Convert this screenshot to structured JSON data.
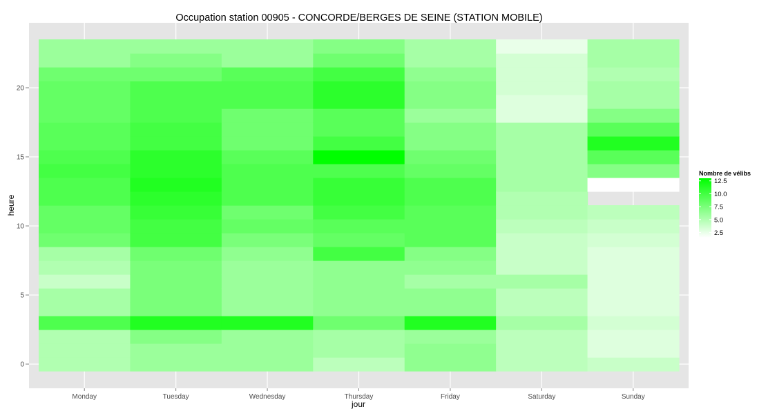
{
  "chart_data": {
    "type": "heatmap",
    "title": "Occupation station 00905 - CONCORDE/BERGES DE SEINE (STATION MOBILE)",
    "xlabel": "jour",
    "ylabel": "heure",
    "categories": [
      "Monday",
      "Tuesday",
      "Wednesday",
      "Thursday",
      "Friday",
      "Saturday",
      "Sunday"
    ],
    "y": [
      0,
      1,
      2,
      3,
      4,
      5,
      6,
      7,
      8,
      9,
      10,
      11,
      12,
      13,
      14,
      15,
      16,
      17,
      18,
      19,
      20,
      21,
      22,
      23
    ],
    "ylim": [
      -0.5,
      23.5
    ],
    "yticks": [
      0,
      5,
      10,
      15,
      20
    ],
    "legend": {
      "title": "Nombre de vélibs",
      "labels": [
        "12.5",
        "10.0",
        "7.5",
        "5.0",
        "2.5"
      ],
      "ticks": [
        12.5,
        10.0,
        7.5,
        5.0,
        2.5
      ],
      "range": [
        1.5,
        13.0
      ],
      "low_color": "#ffffff",
      "high_color": "#00ff00",
      "placement": "right"
    },
    "grid": true,
    "values": [
      [
        5.0,
        5.0,
        5.0,
        9.5,
        5.5,
        5.5,
        4.0,
        5.0,
        5.5,
        8.0,
        8.5,
        8.5,
        9.5,
        9.5,
        10.0,
        9.5,
        9.0,
        9.0,
        8.5,
        8.5,
        8.5,
        8.0,
        6.0,
        6.0
      ],
      [
        6.0,
        6.0,
        7.0,
        11.5,
        7.5,
        7.5,
        7.5,
        7.5,
        8.0,
        10.0,
        10.0,
        10.5,
        11.0,
        11.5,
        11.0,
        11.0,
        10.0,
        10.0,
        9.5,
        9.5,
        9.5,
        8.0,
        7.0,
        6.0
      ],
      [
        6.0,
        6.0,
        6.0,
        11.5,
        6.0,
        6.0,
        6.0,
        6.0,
        6.5,
        7.5,
        8.5,
        8.0,
        9.5,
        9.5,
        9.5,
        9.0,
        8.0,
        8.0,
        8.0,
        9.5,
        9.5,
        9.0,
        6.0,
        6.0
      ],
      [
        4.5,
        5.5,
        5.5,
        8.0,
        6.5,
        6.5,
        6.5,
        6.5,
        10.0,
        8.5,
        9.0,
        10.0,
        10.5,
        10.5,
        9.5,
        13.0,
        10.0,
        9.0,
        9.0,
        11.0,
        11.0,
        10.0,
        8.0,
        7.0
      ],
      [
        6.5,
        6.5,
        6.0,
        11.5,
        6.5,
        6.5,
        5.5,
        6.5,
        7.0,
        9.0,
        9.0,
        9.0,
        9.5,
        9.5,
        8.5,
        8.0,
        7.0,
        7.0,
        6.0,
        7.0,
        7.0,
        6.5,
        5.5,
        5.5
      ],
      [
        4.5,
        4.5,
        4.5,
        5.5,
        4.5,
        4.5,
        5.5,
        4.0,
        4.0,
        4.0,
        4.5,
        5.0,
        5.0,
        5.5,
        5.5,
        5.5,
        5.5,
        5.5,
        3.0,
        3.0,
        3.5,
        3.5,
        3.5,
        2.5
      ],
      [
        4.0,
        3.0,
        3.0,
        3.5,
        3.0,
        3.0,
        3.0,
        3.0,
        3.0,
        3.5,
        4.0,
        4.5,
        null,
        1.5,
        7.0,
        9.0,
        11.5,
        9.0,
        7.0,
        5.5,
        5.5,
        5.0,
        5.5,
        5.5
      ]
    ]
  }
}
